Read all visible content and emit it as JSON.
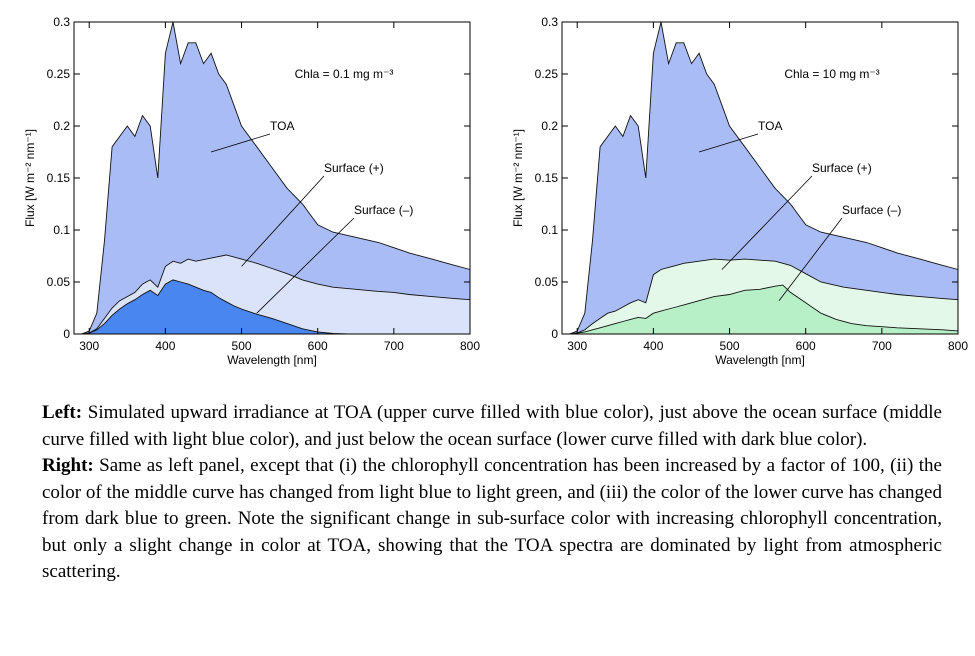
{
  "chart_data": [
    {
      "type": "area",
      "panel": "left",
      "xlabel": "Wavelength [nm]",
      "ylabel": "Flux [W m⁻² nm⁻¹]",
      "xlim": [
        280,
        800
      ],
      "ylim": [
        0,
        0.3
      ],
      "xticks": [
        300,
        400,
        500,
        600,
        700,
        800
      ],
      "yticks": [
        0,
        0.05,
        0.1,
        0.15,
        0.2,
        0.25,
        0.3
      ],
      "ytick_labels": [
        "0",
        "0.05",
        "0.1",
        "0.15",
        "0.2",
        "0.25",
        "0.3"
      ],
      "annotation": "Chla = 0.1 mg m⁻³",
      "series": [
        {
          "name": "TOA",
          "color": "#a9bcf5",
          "x": [
            290,
            300,
            310,
            320,
            330,
            340,
            350,
            360,
            370,
            380,
            390,
            400,
            410,
            420,
            430,
            440,
            450,
            460,
            470,
            480,
            490,
            500,
            520,
            540,
            560,
            580,
            600,
            620,
            650,
            680,
            700,
            720,
            750,
            780,
            800
          ],
          "y": [
            0,
            0.003,
            0.02,
            0.09,
            0.18,
            0.19,
            0.2,
            0.19,
            0.21,
            0.2,
            0.15,
            0.27,
            0.3,
            0.26,
            0.28,
            0.28,
            0.26,
            0.27,
            0.25,
            0.24,
            0.22,
            0.2,
            0.18,
            0.16,
            0.14,
            0.125,
            0.105,
            0.098,
            0.093,
            0.088,
            0.083,
            0.078,
            0.072,
            0.066,
            0.062
          ]
        },
        {
          "name": "Surface (+)",
          "color": "#dbe3fa",
          "x": [
            290,
            300,
            310,
            320,
            330,
            340,
            350,
            360,
            370,
            380,
            390,
            400,
            410,
            420,
            430,
            440,
            460,
            480,
            500,
            520,
            540,
            560,
            580,
            600,
            620,
            650,
            680,
            700,
            720,
            750,
            780,
            800
          ],
          "y": [
            0,
            0.001,
            0.005,
            0.015,
            0.025,
            0.032,
            0.036,
            0.04,
            0.048,
            0.052,
            0.045,
            0.065,
            0.07,
            0.068,
            0.072,
            0.07,
            0.073,
            0.076,
            0.072,
            0.068,
            0.063,
            0.058,
            0.052,
            0.048,
            0.045,
            0.043,
            0.041,
            0.04,
            0.038,
            0.036,
            0.034,
            0.033
          ]
        },
        {
          "name": "Surface (–)",
          "color": "#4a86f0",
          "x": [
            290,
            300,
            310,
            320,
            330,
            340,
            350,
            360,
            370,
            380,
            390,
            400,
            410,
            420,
            430,
            440,
            450,
            460,
            470,
            480,
            490,
            500,
            520,
            540,
            560,
            580,
            600,
            620,
            640
          ],
          "y": [
            0,
            0.001,
            0.004,
            0.01,
            0.018,
            0.024,
            0.029,
            0.033,
            0.038,
            0.042,
            0.037,
            0.048,
            0.052,
            0.05,
            0.048,
            0.045,
            0.042,
            0.04,
            0.035,
            0.031,
            0.027,
            0.024,
            0.019,
            0.015,
            0.01,
            0.005,
            0.002,
            0.0005,
            0
          ]
        }
      ],
      "labels": [
        "TOA",
        "Surface (+)",
        "Surface (–)"
      ]
    },
    {
      "type": "area",
      "panel": "right",
      "xlabel": "Wavelength [nm]",
      "ylabel": "Flux [W m⁻² nm⁻¹]",
      "xlim": [
        280,
        800
      ],
      "ylim": [
        0,
        0.3
      ],
      "xticks": [
        300,
        400,
        500,
        600,
        700,
        800
      ],
      "yticks": [
        0,
        0.05,
        0.1,
        0.15,
        0.2,
        0.25,
        0.3
      ],
      "ytick_labels": [
        "0",
        "0.05",
        "0.1",
        "0.15",
        "0.2",
        "0.25",
        "0.3"
      ],
      "annotation": "Chla = 10 mg m⁻³",
      "series": [
        {
          "name": "TOA",
          "color": "#a9bcf5",
          "x": [
            290,
            300,
            310,
            320,
            330,
            340,
            350,
            360,
            370,
            380,
            390,
            400,
            410,
            420,
            430,
            440,
            450,
            460,
            470,
            480,
            490,
            500,
            520,
            540,
            560,
            580,
            600,
            620,
            650,
            680,
            700,
            720,
            750,
            780,
            800
          ],
          "y": [
            0,
            0.003,
            0.02,
            0.09,
            0.18,
            0.19,
            0.2,
            0.19,
            0.21,
            0.2,
            0.15,
            0.27,
            0.3,
            0.26,
            0.28,
            0.28,
            0.26,
            0.27,
            0.25,
            0.24,
            0.22,
            0.2,
            0.18,
            0.16,
            0.14,
            0.125,
            0.105,
            0.098,
            0.093,
            0.088,
            0.083,
            0.078,
            0.072,
            0.066,
            0.062
          ]
        },
        {
          "name": "Surface (+)",
          "color": "#e3f8e8",
          "x": [
            290,
            300,
            310,
            320,
            330,
            340,
            350,
            360,
            370,
            380,
            390,
            400,
            410,
            420,
            430,
            440,
            460,
            480,
            500,
            520,
            540,
            560,
            580,
            600,
            620,
            650,
            680,
            700,
            720,
            750,
            780,
            800
          ],
          "y": [
            0,
            0.001,
            0.004,
            0.01,
            0.015,
            0.02,
            0.022,
            0.026,
            0.03,
            0.033,
            0.03,
            0.057,
            0.062,
            0.064,
            0.066,
            0.068,
            0.07,
            0.072,
            0.071,
            0.072,
            0.071,
            0.07,
            0.066,
            0.058,
            0.05,
            0.045,
            0.042,
            0.04,
            0.038,
            0.036,
            0.034,
            0.033
          ]
        },
        {
          "name": "Surface (–)",
          "color": "#b7f0c6",
          "x": [
            290,
            300,
            310,
            320,
            330,
            340,
            350,
            360,
            370,
            380,
            390,
            400,
            410,
            420,
            430,
            440,
            460,
            480,
            500,
            520,
            540,
            560,
            570,
            580,
            600,
            620,
            640,
            660,
            680,
            700,
            720,
            750,
            780,
            800
          ],
          "y": [
            0,
            0.001,
            0.002,
            0.004,
            0.006,
            0.008,
            0.01,
            0.012,
            0.014,
            0.016,
            0.015,
            0.02,
            0.022,
            0.024,
            0.026,
            0.028,
            0.032,
            0.036,
            0.038,
            0.042,
            0.043,
            0.046,
            0.047,
            0.04,
            0.03,
            0.02,
            0.014,
            0.01,
            0.008,
            0.007,
            0.006,
            0.005,
            0.004,
            0.003
          ]
        }
      ],
      "labels": [
        "TOA",
        "Surface (+)",
        "Surface (–)"
      ]
    }
  ],
  "caption": {
    "left_heading": "Left:",
    "left_text": " Simulated upward irradiance at TOA (upper curve filled with blue color), just above the ocean surface (middle curve filled with light blue color), and just below the ocean surface (lower curve filled with dark blue color).",
    "right_heading": "Right:",
    "right_text": " Same as left panel, except that (i) the chlorophyll concentration has been increased by a factor of 100, (ii) the color of the middle curve has changed from light blue to light green, and (iii) the color of the lower curve has changed from dark blue to green. Note the significant change in sub-surface color with increasing chlorophyll concentration, but only a slight change in color at TOA, showing that the TOA spectra are dominated by light from atmospheric scattering."
  }
}
